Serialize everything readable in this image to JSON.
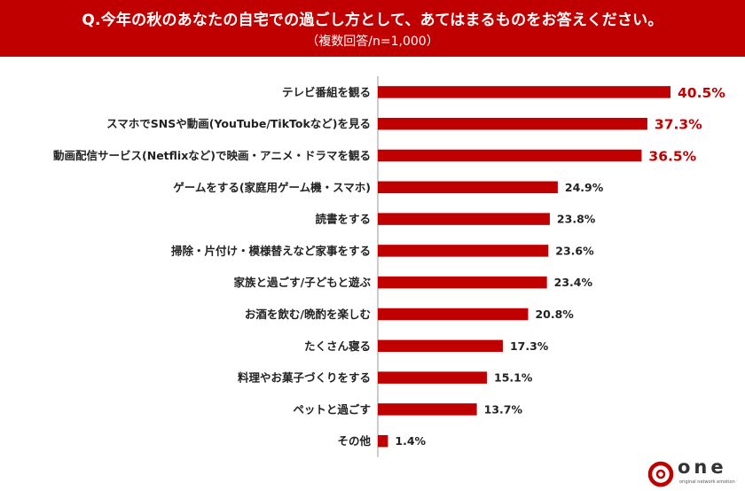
{
  "header": {
    "title": "Q.今年の秋のあなたの自宅での過ごし方として、あてはまるものをお答えください。",
    "subtitle": "（複数回答/n=1,000）"
  },
  "colors": {
    "accent": "#c00000",
    "bar": "#c00000",
    "text": "#222222"
  },
  "chart_data": {
    "type": "bar",
    "orientation": "horizontal",
    "title": "Q.今年の秋のあなたの自宅での過ごし方として、あてはまるものをお答えください。",
    "subtitle": "（複数回答/n=1,000）",
    "categories": [
      "テレビ番組を観る",
      "スマホでSNSや動画(YouTube/TikTokなど)を見る",
      "動画配信サービス(Netflixなど)で映画・アニメ・ドラマを観る",
      "ゲームをする(家庭用ゲーム機・スマホ)",
      "読書をする",
      "掃除・片付け・模様替えなど家事をする",
      "家族と過ごす/子どもと遊ぶ",
      "お酒を飲む/晩酌を楽しむ",
      "たくさん寝る",
      "料理やお菓子づくりをする",
      "ペットと過ごす",
      "その他"
    ],
    "values": [
      40.5,
      37.3,
      36.5,
      24.9,
      23.8,
      23.6,
      23.4,
      20.8,
      17.3,
      15.1,
      13.7,
      1.4
    ],
    "value_labels": [
      "40.5%",
      "37.3%",
      "36.5%",
      "24.9%",
      "23.8%",
      "23.6%",
      "23.4%",
      "20.8%",
      "17.3%",
      "15.1%",
      "13.7%",
      "1.4%"
    ],
    "highlight_top": 3,
    "xlim": [
      0,
      45
    ],
    "grid": false,
    "legend": "none"
  },
  "logo": {
    "word": "one",
    "tagline": "original network emotion"
  }
}
